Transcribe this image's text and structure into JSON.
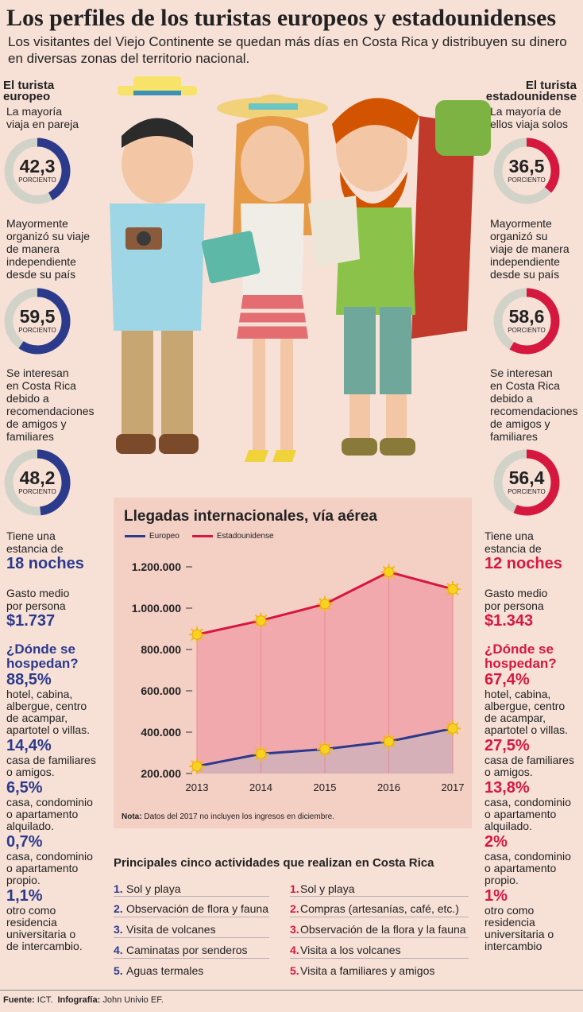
{
  "header": {
    "title": "Los perfiles de los turistas europeos y estadounidenses",
    "subtitle": "Los visitantes del Viejo Continente se quedan más días en Costa Rica y distribuyen su dinero en diversas zonas del territorio nacional."
  },
  "colors": {
    "blue": "#2c3a8c",
    "red": "#d6183f",
    "donut_track": "#d2d3c8",
    "bg": "#f7e1d7",
    "panel": "#f3cfc4"
  },
  "europe": {
    "heading_1": "El turista",
    "heading_2": "europeo",
    "stat1_text": [
      "La mayoría",
      "viaja en pareja"
    ],
    "stat1_value": "42,3",
    "stat1_pct": 42.3,
    "stat2_text": [
      "Mayormente",
      "organizó su viaje",
      "de manera",
      "independiente",
      "desde su país"
    ],
    "stat2_value": "59,5",
    "stat2_pct": 59.5,
    "stat3_text": [
      "Se interesan",
      "en Costa Rica",
      "debido a",
      "recomendaciones",
      "de amigos y",
      "familiares"
    ],
    "stat3_value": "48,2",
    "stat3_pct": 48.2,
    "percent_label": "PORCIENTO",
    "stay_text": [
      "Tiene una",
      "estancia de"
    ],
    "stay_value": "18 noches",
    "spend_text": [
      "Gasto medio",
      "por persona"
    ],
    "spend_value": "$1.737",
    "lodging_title": [
      "¿Dónde se",
      "hospedan?"
    ],
    "lodging": [
      {
        "pct": "88,5%",
        "desc": [
          "hotel, cabina,",
          "albergue, centro",
          "de acampar,",
          "apartotel o villas."
        ]
      },
      {
        "pct": "14,4%",
        "desc": [
          "casa de familiares",
          "o amigos."
        ]
      },
      {
        "pct": "6,5%",
        "desc": [
          "casa, condominio",
          "o apartamento",
          "alquilado."
        ]
      },
      {
        "pct": "0,7%",
        "desc": [
          "casa, condominio",
          "o apartamento",
          "propio."
        ]
      },
      {
        "pct": "1,1%",
        "desc": [
          "otro como",
          "residencia",
          "universitaria o",
          "de intercambio."
        ]
      }
    ]
  },
  "usa": {
    "heading_1": "El turista",
    "heading_2": "estadounidense",
    "stat1_text": [
      "La mayoría de",
      "ellos viaja solos"
    ],
    "stat1_value": "36,5",
    "stat1_pct": 36.5,
    "stat2_text": [
      "Mayormente",
      "organizó su",
      "viaje de manera",
      "independiente",
      "desde su país"
    ],
    "stat2_value": "58,6",
    "stat2_pct": 58.6,
    "stat3_text": [
      "Se interesan",
      "en Costa Rica",
      "debido a",
      "recomendaciones",
      "de amigos y",
      "familiares"
    ],
    "stat3_value": "56,4",
    "stat3_pct": 56.4,
    "percent_label": "PORCIENTO",
    "stay_text": [
      "Tiene una",
      "estancia de"
    ],
    "stay_value": "12 noches",
    "spend_text": [
      "Gasto medio",
      "por persona"
    ],
    "spend_value": "$1.343",
    "lodging_title": [
      "¿Dónde se",
      "hospedan?"
    ],
    "lodging": [
      {
        "pct": "67,4%",
        "desc": [
          "hotel, cabina,",
          "albergue, centro",
          "de acampar,",
          "apartotel o villas."
        ]
      },
      {
        "pct": "27,5%",
        "desc": [
          "casa de familiares",
          "o amigos."
        ]
      },
      {
        "pct": "13,8%",
        "desc": [
          "casa, condominio",
          "o apartamento",
          "alquilado."
        ]
      },
      {
        "pct": "2%",
        "desc": [
          "casa, condominio",
          "o apartamento",
          "propio."
        ]
      },
      {
        "pct": "1%",
        "desc": [
          "otro como",
          "residencia",
          "universitaria o",
          "intercambio"
        ]
      }
    ]
  },
  "chart_data": {
    "type": "area",
    "title": "Llegadas internacionales, vía aérea",
    "xlabel": "",
    "ylabel": "",
    "x": [
      "2013",
      "2014",
      "2015",
      "2016",
      "2017"
    ],
    "yticks": [
      "200.000",
      "400.000",
      "600.000",
      "800.000",
      "1.000.000",
      "1.200.000"
    ],
    "ylim": [
      200000,
      1200000
    ],
    "series": [
      {
        "name": "Europeo",
        "color": "#2c3a8c",
        "values": [
          235000,
          295000,
          318000,
          355000,
          418000
        ]
      },
      {
        "name": "Estadounidense",
        "color": "#d6183f",
        "values": [
          872000,
          940000,
          1020000,
          1175000,
          1092000
        ]
      }
    ],
    "legend": "top-left",
    "grid": "vertical",
    "note_label": "Nota:",
    "note_text": "Datos del 2017 no incluyen los ingresos en diciembre."
  },
  "activities": {
    "title": "Principales cinco actividades que realizan en Costa Rica",
    "europe": [
      {
        "n": "1.",
        "label": "Sol y playa"
      },
      {
        "n": "2.",
        "label": "Observación de flora y fauna"
      },
      {
        "n": "3.",
        "label": "Visita de volcanes"
      },
      {
        "n": "4.",
        "label": "Caminatas por senderos"
      },
      {
        "n": "5.",
        "label": "Aguas termales"
      }
    ],
    "usa": [
      {
        "n": "1.",
        "label": "Sol y playa"
      },
      {
        "n": "2.",
        "label": "Compras (artesanías, café, etc.)"
      },
      {
        "n": "3.",
        "label": "Observación de la flora y la fauna"
      },
      {
        "n": "4.",
        "label": "Visita a los volcanes"
      },
      {
        "n": "5.",
        "label": "Visita a familiares y amigos"
      }
    ]
  },
  "footer": {
    "source_label": "Fuente:",
    "source_value": "ICT.",
    "credit_label": "Infografía:",
    "credit_value": "John Univio EF."
  }
}
